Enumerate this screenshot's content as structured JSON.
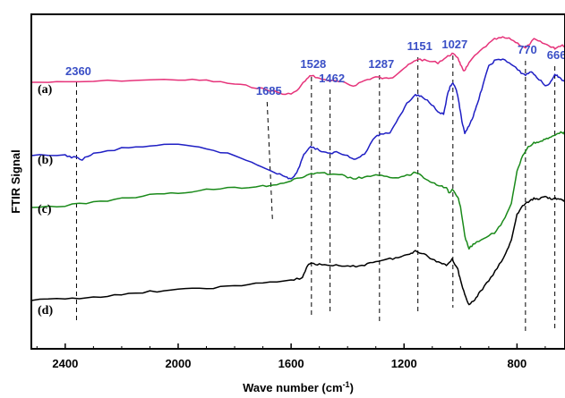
{
  "chart_data": {
    "type": "line",
    "title": "",
    "xlabel": "Wave number (cm",
    "xlabel_sup": "-1",
    "xlabel_close": ")",
    "ylabel": "FTIR Signal",
    "xlim": [
      2520,
      630
    ],
    "x_reversed": true,
    "y_ticks_shown": false,
    "x_ticks": [
      "2400",
      "2000",
      "1600",
      "1200",
      "800"
    ],
    "x_tick_values": [
      2400,
      2000,
      1600,
      1200,
      800
    ],
    "grid": false,
    "peak_color": "#3a4fc6",
    "marker_lines": [
      {
        "label": "2360",
        "x": 2360
      },
      {
        "label": "1685",
        "x": 1685
      },
      {
        "label": "1528",
        "x": 1528
      },
      {
        "label": "1462",
        "x": 1462
      },
      {
        "label": "1287",
        "x": 1287
      },
      {
        "label": "1151",
        "x": 1151
      },
      {
        "label": "1027",
        "x": 1027
      },
      {
        "label": "770",
        "x": 770
      },
      {
        "label": "666",
        "x": 666
      }
    ],
    "series": [
      {
        "name": "(a)",
        "color": "#e6337a",
        "points": [
          [
            2520,
            0.84
          ],
          [
            2400,
            0.84
          ],
          [
            2200,
            0.85
          ],
          [
            2000,
            0.855
          ],
          [
            1900,
            0.85
          ],
          [
            1800,
            0.83
          ],
          [
            1720,
            0.81
          ],
          [
            1660,
            0.79
          ],
          [
            1620,
            0.77
          ],
          [
            1580,
            0.79
          ],
          [
            1550,
            0.85
          ],
          [
            1528,
            0.88
          ],
          [
            1500,
            0.86
          ],
          [
            1462,
            0.85
          ],
          [
            1420,
            0.84
          ],
          [
            1380,
            0.82
          ],
          [
            1340,
            0.85
          ],
          [
            1300,
            0.87
          ],
          [
            1270,
            0.86
          ],
          [
            1240,
            0.87
          ],
          [
            1200,
            0.92
          ],
          [
            1170,
            0.95
          ],
          [
            1151,
            0.97
          ],
          [
            1120,
            0.96
          ],
          [
            1080,
            0.95
          ],
          [
            1050,
            0.98
          ],
          [
            1030,
            1.0
          ],
          [
            1010,
            0.98
          ],
          [
            1000,
            0.94
          ],
          [
            990,
            0.9
          ],
          [
            980,
            0.92
          ],
          [
            960,
            0.97
          ],
          [
            920,
            1.03
          ],
          [
            880,
            1.08
          ],
          [
            850,
            1.09
          ],
          [
            820,
            1.08
          ],
          [
            790,
            1.05
          ],
          [
            770,
            1.03
          ],
          [
            740,
            1.08
          ],
          [
            710,
            1.06
          ],
          [
            680,
            1.04
          ],
          [
            666,
            1.03
          ],
          [
            640,
            1.05
          ],
          [
            630,
            1.04
          ]
        ]
      },
      {
        "name": "(b)",
        "color": "#1f1fc4",
        "points": [
          [
            2520,
            0.43
          ],
          [
            2400,
            0.43
          ],
          [
            2370,
            0.42
          ],
          [
            2340,
            0.41
          ],
          [
            2300,
            0.44
          ],
          [
            2200,
            0.47
          ],
          [
            2100,
            0.485
          ],
          [
            2000,
            0.49
          ],
          [
            1900,
            0.47
          ],
          [
            1800,
            0.43
          ],
          [
            1720,
            0.38
          ],
          [
            1660,
            0.34
          ],
          [
            1620,
            0.31
          ],
          [
            1600,
            0.3
          ],
          [
            1580,
            0.33
          ],
          [
            1560,
            0.42
          ],
          [
            1540,
            0.47
          ],
          [
            1528,
            0.48
          ],
          [
            1500,
            0.46
          ],
          [
            1470,
            0.44
          ],
          [
            1440,
            0.45
          ],
          [
            1400,
            0.43
          ],
          [
            1370,
            0.41
          ],
          [
            1340,
            0.44
          ],
          [
            1300,
            0.54
          ],
          [
            1280,
            0.55
          ],
          [
            1250,
            0.56
          ],
          [
            1220,
            0.64
          ],
          [
            1190,
            0.72
          ],
          [
            1160,
            0.77
          ],
          [
            1140,
            0.76
          ],
          [
            1110,
            0.73
          ],
          [
            1080,
            0.68
          ],
          [
            1060,
            0.66
          ],
          [
            1045,
            0.78
          ],
          [
            1035,
            0.82
          ],
          [
            1027,
            0.83
          ],
          [
            1015,
            0.8
          ],
          [
            1005,
            0.72
          ],
          [
            995,
            0.62
          ],
          [
            985,
            0.55
          ],
          [
            970,
            0.6
          ],
          [
            955,
            0.65
          ],
          [
            940,
            0.72
          ],
          [
            920,
            0.83
          ],
          [
            900,
            0.93
          ],
          [
            880,
            0.96
          ],
          [
            850,
            0.97
          ],
          [
            820,
            0.94
          ],
          [
            790,
            0.9
          ],
          [
            770,
            0.88
          ],
          [
            750,
            0.9
          ],
          [
            730,
            0.87
          ],
          [
            700,
            0.82
          ],
          [
            680,
            0.84
          ],
          [
            666,
            0.88
          ],
          [
            650,
            0.87
          ],
          [
            630,
            0.84
          ]
        ]
      },
      {
        "name": "(c)",
        "color": "#1a8a1a",
        "points": [
          [
            2520,
            0.14
          ],
          [
            2400,
            0.15
          ],
          [
            2300,
            0.17
          ],
          [
            2200,
            0.19
          ],
          [
            2100,
            0.21
          ],
          [
            2000,
            0.22
          ],
          [
            1900,
            0.24
          ],
          [
            1800,
            0.25
          ],
          [
            1700,
            0.26
          ],
          [
            1650,
            0.27
          ],
          [
            1600,
            0.29
          ],
          [
            1560,
            0.31
          ],
          [
            1528,
            0.33
          ],
          [
            1500,
            0.33
          ],
          [
            1462,
            0.33
          ],
          [
            1420,
            0.32
          ],
          [
            1380,
            0.3
          ],
          [
            1340,
            0.31
          ],
          [
            1300,
            0.32
          ],
          [
            1260,
            0.31
          ],
          [
            1220,
            0.31
          ],
          [
            1180,
            0.32
          ],
          [
            1160,
            0.34
          ],
          [
            1130,
            0.31
          ],
          [
            1100,
            0.28
          ],
          [
            1070,
            0.26
          ],
          [
            1050,
            0.25
          ],
          [
            1040,
            0.22
          ],
          [
            1030,
            0.24
          ],
          [
            1010,
            0.2
          ],
          [
            1000,
            0.14
          ],
          [
            985,
            -0.02
          ],
          [
            970,
            -0.09
          ],
          [
            950,
            -0.06
          ],
          [
            920,
            -0.04
          ],
          [
            880,
            0.0
          ],
          [
            850,
            0.06
          ],
          [
            820,
            0.16
          ],
          [
            800,
            0.34
          ],
          [
            780,
            0.43
          ],
          [
            760,
            0.48
          ],
          [
            740,
            0.5
          ],
          [
            720,
            0.51
          ],
          [
            700,
            0.52
          ],
          [
            680,
            0.53
          ],
          [
            660,
            0.55
          ],
          [
            640,
            0.56
          ],
          [
            630,
            0.55
          ]
        ]
      },
      {
        "name": "(d)",
        "color": "#000000",
        "points": [
          [
            2520,
            -0.38
          ],
          [
            2400,
            -0.37
          ],
          [
            2300,
            -0.36
          ],
          [
            2200,
            -0.35
          ],
          [
            2100,
            -0.33
          ],
          [
            2000,
            -0.32
          ],
          [
            1900,
            -0.31
          ],
          [
            1800,
            -0.3
          ],
          [
            1700,
            -0.28
          ],
          [
            1600,
            -0.27
          ],
          [
            1560,
            -0.25
          ],
          [
            1540,
            -0.18
          ],
          [
            1528,
            -0.17
          ],
          [
            1500,
            -0.18
          ],
          [
            1462,
            -0.18
          ],
          [
            1420,
            -0.19
          ],
          [
            1380,
            -0.19
          ],
          [
            1340,
            -0.18
          ],
          [
            1300,
            -0.16
          ],
          [
            1260,
            -0.15
          ],
          [
            1220,
            -0.14
          ],
          [
            1180,
            -0.12
          ],
          [
            1160,
            -0.1
          ],
          [
            1130,
            -0.12
          ],
          [
            1100,
            -0.15
          ],
          [
            1070,
            -0.17
          ],
          [
            1050,
            -0.18
          ],
          [
            1030,
            -0.15
          ],
          [
            1010,
            -0.2
          ],
          [
            1000,
            -0.27
          ],
          [
            985,
            -0.35
          ],
          [
            970,
            -0.4
          ],
          [
            950,
            -0.38
          ],
          [
            930,
            -0.33
          ],
          [
            900,
            -0.27
          ],
          [
            870,
            -0.2
          ],
          [
            840,
            -0.12
          ],
          [
            820,
            -0.04
          ],
          [
            800,
            0.1
          ],
          [
            780,
            0.15
          ],
          [
            760,
            0.17
          ],
          [
            740,
            0.19
          ],
          [
            720,
            0.19
          ],
          [
            700,
            0.2
          ],
          [
            680,
            0.19
          ],
          [
            660,
            0.19
          ],
          [
            640,
            0.18
          ],
          [
            630,
            0.18
          ]
        ]
      }
    ]
  }
}
